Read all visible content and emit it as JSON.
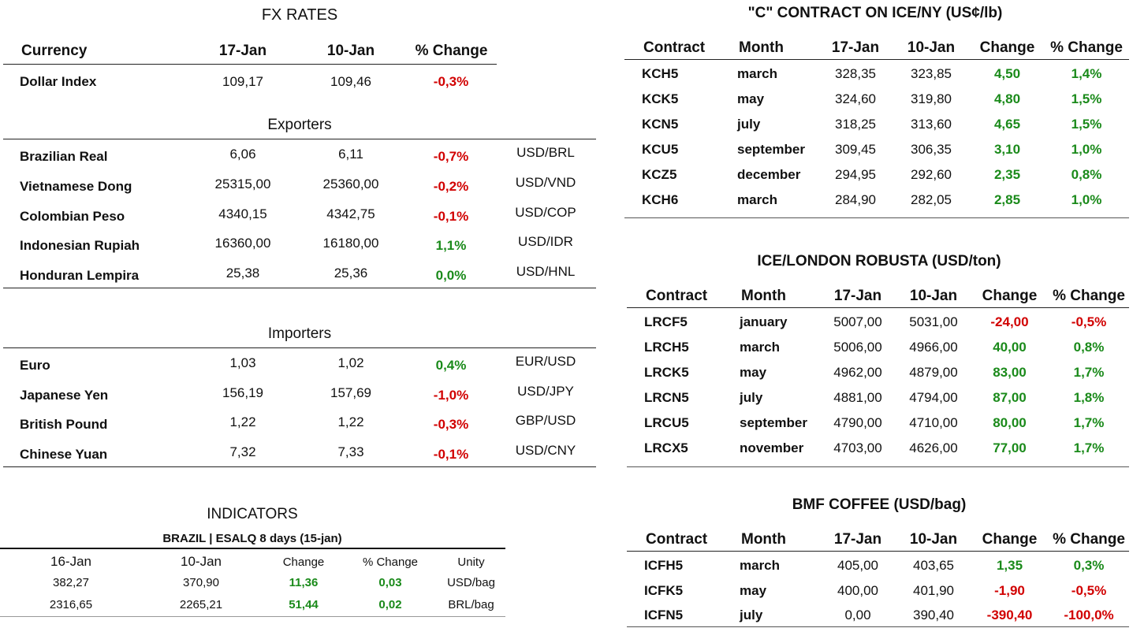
{
  "fx": {
    "title": "FX RATES",
    "headers": {
      "currency": "Currency",
      "d1": "17-Jan",
      "d2": "10-Jan",
      "pct": "% Change"
    },
    "dollar_index": {
      "name": "Dollar Index",
      "v1": "109,17",
      "v2": "109,46",
      "pct": "-0,3%"
    },
    "exporters_title": "Exporters",
    "exporters": [
      {
        "name": "Brazilian Real",
        "v1": "6,06",
        "v2": "6,11",
        "pct": "-0,7%",
        "pair": "USD/BRL"
      },
      {
        "name": "Vietnamese Dong",
        "v1": "25315,00",
        "v2": "25360,00",
        "pct": "-0,2%",
        "pair": "USD/VND"
      },
      {
        "name": "Colombian Peso",
        "v1": "4340,15",
        "v2": "4342,75",
        "pct": "-0,1%",
        "pair": "USD/COP"
      },
      {
        "name": "Indonesian Rupiah",
        "v1": "16360,00",
        "v2": "16180,00",
        "pct": "1,1%",
        "pair": "USD/IDR"
      },
      {
        "name": "Honduran Lempira",
        "v1": "25,38",
        "v2": "25,36",
        "pct": "0,0%",
        "pair": "USD/HNL"
      }
    ],
    "importers_title": "Importers",
    "importers": [
      {
        "name": "Euro",
        "v1": "1,03",
        "v2": "1,02",
        "pct": "0,4%",
        "pair": "EUR/USD"
      },
      {
        "name": "Japanese Yen",
        "v1": "156,19",
        "v2": "157,69",
        "pct": "-1,0%",
        "pair": "USD/JPY"
      },
      {
        "name": "British Pound",
        "v1": "1,22",
        "v2": "1,22",
        "pct": "-0,3%",
        "pair": "GBP/USD"
      },
      {
        "name": "Chinese Yuan",
        "v1": "7,32",
        "v2": "7,33",
        "pct": "-0,1%",
        "pair": "USD/CNY"
      }
    ]
  },
  "indicators": {
    "title": "INDICATORS",
    "subtitle": "BRAZIL | ESALQ 8 days (15-jan)",
    "headers": {
      "d1": "16-Jan",
      "d2": "10-Jan",
      "chg": "Change",
      "pct": "% Change",
      "unit": "Unity"
    },
    "rows": [
      {
        "v1": "382,27",
        "v2": "370,90",
        "chg": "11,36",
        "pct": "0,03",
        "unit": "USD/bag"
      },
      {
        "v1": "2316,65",
        "v2": "2265,21",
        "chg": "51,44",
        "pct": "0,02",
        "unit": "BRL/bag"
      }
    ]
  },
  "kc": {
    "title": "\"C\" CONTRACT ON ICE/NY (US¢/lb)",
    "headers": {
      "contract": "Contract",
      "month": "Month",
      "d1": "17-Jan",
      "d2": "10-Jan",
      "chg": "Change",
      "pct": "% Change"
    },
    "rows": [
      {
        "contract": "KCH5",
        "month": "march",
        "v1": "328,35",
        "v2": "323,85",
        "chg": "4,50",
        "pct": "1,4%"
      },
      {
        "contract": "KCK5",
        "month": "may",
        "v1": "324,60",
        "v2": "319,80",
        "chg": "4,80",
        "pct": "1,5%"
      },
      {
        "contract": "KCN5",
        "month": "july",
        "v1": "318,25",
        "v2": "313,60",
        "chg": "4,65",
        "pct": "1,5%"
      },
      {
        "contract": "KCU5",
        "month": "september",
        "v1": "309,45",
        "v2": "306,35",
        "chg": "3,10",
        "pct": "1,0%"
      },
      {
        "contract": "KCZ5",
        "month": "december",
        "v1": "294,95",
        "v2": "292,60",
        "chg": "2,35",
        "pct": "0,8%"
      },
      {
        "contract": "KCH6",
        "month": "march",
        "v1": "284,90",
        "v2": "282,05",
        "chg": "2,85",
        "pct": "1,0%"
      }
    ]
  },
  "lrc": {
    "title": "ICE/LONDON ROBUSTA (USD/ton)",
    "headers": {
      "contract": "Contract",
      "month": "Month",
      "d1": "17-Jan",
      "d2": "10-Jan",
      "chg": "Change",
      "pct": "% Change"
    },
    "rows": [
      {
        "contract": "LRCF5",
        "month": "january",
        "v1": "5007,00",
        "v2": "5031,00",
        "chg": "-24,00",
        "pct": "-0,5%"
      },
      {
        "contract": "LRCH5",
        "month": "march",
        "v1": "5006,00",
        "v2": "4966,00",
        "chg": "40,00",
        "pct": "0,8%"
      },
      {
        "contract": "LRCK5",
        "month": "may",
        "v1": "4962,00",
        "v2": "4879,00",
        "chg": "83,00",
        "pct": "1,7%"
      },
      {
        "contract": "LRCN5",
        "month": "july",
        "v1": "4881,00",
        "v2": "4794,00",
        "chg": "87,00",
        "pct": "1,8%"
      },
      {
        "contract": "LRCU5",
        "month": "september",
        "v1": "4790,00",
        "v2": "4710,00",
        "chg": "80,00",
        "pct": "1,7%"
      },
      {
        "contract": "LRCX5",
        "month": "november",
        "v1": "4703,00",
        "v2": "4626,00",
        "chg": "77,00",
        "pct": "1,7%"
      }
    ]
  },
  "bmf": {
    "title": "BMF COFFEE (USD/bag)",
    "headers": {
      "contract": "Contract",
      "month": "Month",
      "d1": "17-Jan",
      "d2": "10-Jan",
      "chg": "Change",
      "pct": "% Change"
    },
    "rows": [
      {
        "contract": "ICFH5",
        "month": "march",
        "v1": "405,00",
        "v2": "403,65",
        "chg": "1,35",
        "pct": "0,3%"
      },
      {
        "contract": "ICFK5",
        "month": "may",
        "v1": "400,00",
        "v2": "401,90",
        "chg": "-1,90",
        "pct": "-0,5%"
      },
      {
        "contract": "ICFN5",
        "month": "july",
        "v1": "0,00",
        "v2": "390,40",
        "chg": "-390,40",
        "pct": "-100,0%"
      }
    ]
  },
  "colors": {
    "negative": "#d10000",
    "positive": "#1a8a1a"
  }
}
